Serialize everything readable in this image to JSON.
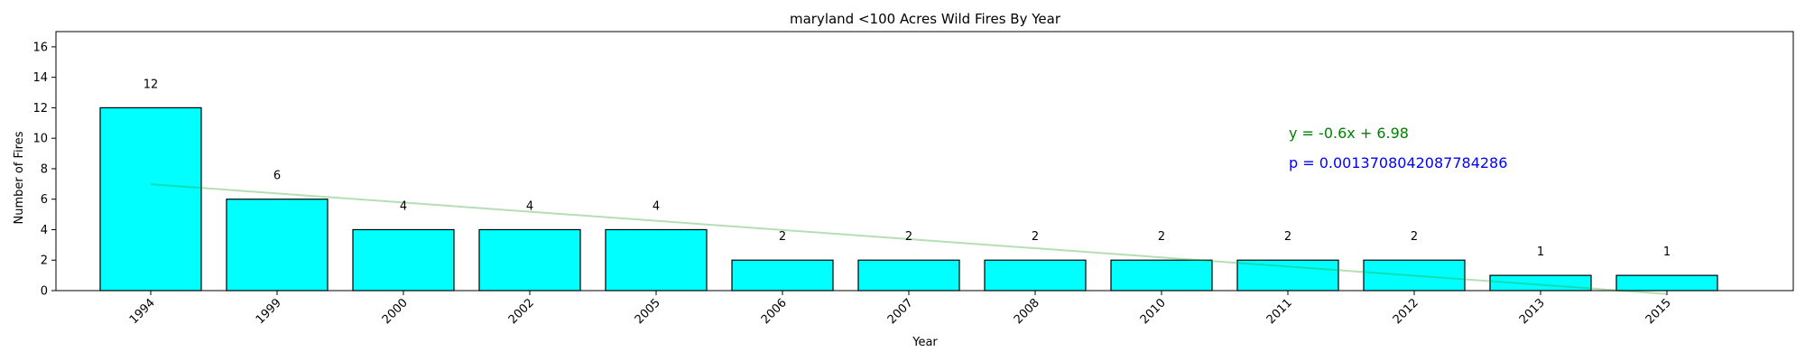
{
  "chart_data": {
    "type": "bar",
    "title": "maryland <100 Acres Wild Fires By Year",
    "xlabel": "Year",
    "ylabel": "Number of Fires",
    "categories": [
      "1994",
      "1999",
      "2000",
      "2002",
      "2005",
      "2006",
      "2007",
      "2008",
      "2010",
      "2011",
      "2012",
      "2013",
      "2015"
    ],
    "values": [
      12,
      6,
      4,
      4,
      4,
      2,
      2,
      2,
      2,
      2,
      2,
      1,
      1
    ],
    "ylim": [
      0,
      17
    ],
    "yticks": [
      0,
      2,
      4,
      6,
      8,
      10,
      12,
      14,
      16
    ],
    "bar_color": "#00ffff",
    "bar_edge_color": "#000000",
    "grid": false,
    "trendline": {
      "slope": -0.6,
      "intercept": 6.98,
      "color": "#2ca02c",
      "equation_label": "y = -0.6x + 6.98",
      "equation_color": "#008000"
    },
    "p_value": {
      "label": "p = 0.0013708042087784286",
      "color": "#0000ff"
    }
  }
}
